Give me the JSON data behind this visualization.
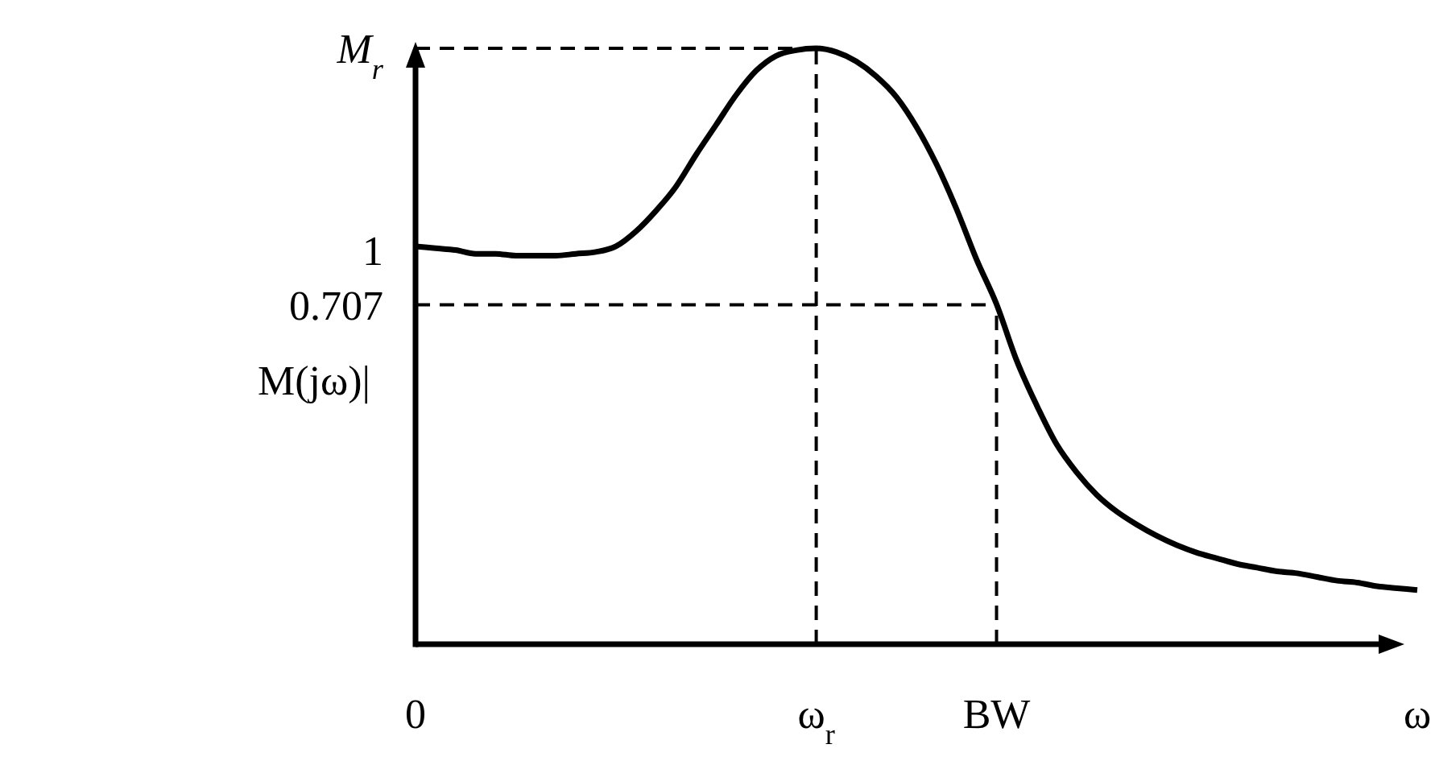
{
  "chart_data": {
    "type": "line",
    "ylabel": "M(jω)|",
    "categories": [
      "0",
      null,
      null,
      null,
      null,
      null,
      null,
      null,
      null,
      null,
      null,
      null,
      null,
      null,
      null,
      null,
      null,
      null,
      null,
      null,
      "ω$_{r}$",
      null,
      null,
      null,
      null,
      null,
      null,
      null,
      null,
      "BW",
      null,
      null,
      null,
      null,
      null,
      null,
      null,
      null,
      null,
      null,
      null,
      null,
      null,
      null,
      null,
      null,
      null,
      null,
      null,
      null,
      "ω"
    ],
    "ylim": [
      -1.11,
      2.08
    ],
    "yticks": [
      {
        "value": 2.08,
        "label": "M$_{r}$"
      },
      1,
      0.707
    ],
    "grid": false,
    "marker": "none",
    "series": [
      {
        "color": "#000000",
        "line_style": "solid",
        "values": [
          1.02,
          1.01,
          1.0,
          0.98,
          0.98,
          0.97,
          0.97,
          0.97,
          0.98,
          0.99,
          1.02,
          1.1,
          1.21,
          1.34,
          1.51,
          1.67,
          1.83,
          1.96,
          2.04,
          2.07,
          2.08,
          2.06,
          2.01,
          1.93,
          1.82,
          1.66,
          1.46,
          1.22,
          0.95,
          0.71,
          0.41,
          0.17,
          -0.04,
          -0.19,
          -0.31,
          -0.4,
          -0.47,
          -0.53,
          -0.58,
          -0.62,
          -0.65,
          -0.68,
          -0.7,
          -0.72,
          -0.73,
          -0.75,
          -0.77,
          -0.78,
          -0.8,
          -0.81,
          -0.82
        ]
      }
    ],
    "ref_lines": [
      {
        "axis": "y",
        "value": 2.08,
        "line_style": "dashed",
        "color": "#000000"
      },
      {
        "axis": "y",
        "value": 0.707,
        "line_style": "dashed",
        "color": "#000000"
      },
      {
        "axis": "x",
        "value": "ω$_{r}$",
        "line_style": "dashed",
        "color": "#000000"
      },
      {
        "axis": "x",
        "value": "BW",
        "line_style": "dashed",
        "color": "#000000"
      }
    ]
  }
}
